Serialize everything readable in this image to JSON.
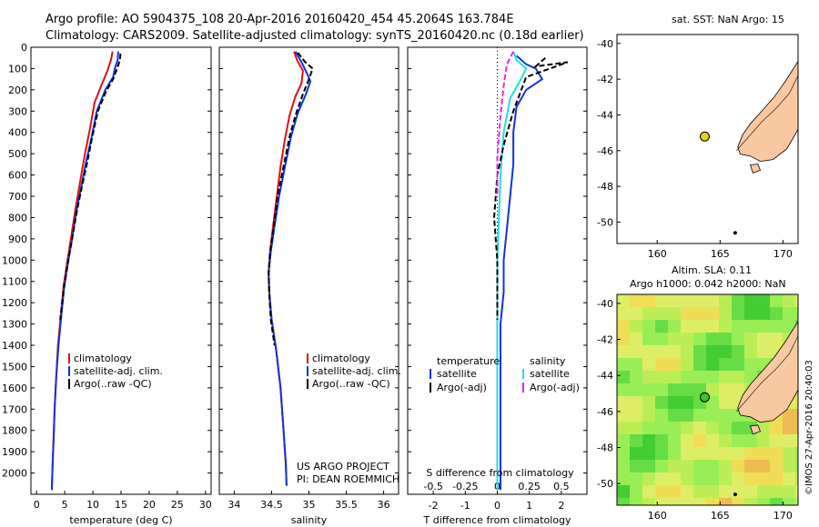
{
  "title_line1": "Argo profile: AO 5904375_108 20-Apr-2016 20160420_454 45.2064S 163.784E",
  "title_line2": "Climatology: CARS2009. Satellite-adjusted climatology: synTS_20160420.nc (0.18d earlier)",
  "project_line1": "US ARGO PROJECT",
  "project_line2": "PI: DEAN ROEMMICH",
  "map1_title": "sat. SST: NaN Argo: 15",
  "map2_title1": "Altim. SLA: 0.11",
  "map2_title2": "Argo h1000: 0.042 h2000: NaN",
  "credit": "©IMOS 27-Apr-2016 20:40:03",
  "legend_temp": [
    "climatology",
    "satellite-adj. clim.",
    "Argo(..raw -QC)"
  ],
  "legend_sal": [
    "climatology",
    "satellite-adj. clim.",
    "Argo(..raw -QC)"
  ],
  "legend_diff_headers": [
    "temperature",
    "salinity"
  ],
  "legend_diff_t": [
    "satellite",
    "Argo(-adj)"
  ],
  "legend_diff_s": [
    "satellite",
    "Argo(-adj)"
  ],
  "colors": {
    "climatology": "#dd1111",
    "satellite": "#1133dd",
    "argo": "#000000",
    "sal_sat": "#22dddd",
    "sal_argo": "#ee22ee",
    "land": "#f8c8a0",
    "float": "#e0d020"
  },
  "chart_data": [
    {
      "type": "line",
      "xlabel": "temperature (deg C)",
      "ylim": [
        2100,
        0
      ],
      "xlim": [
        -1,
        31
      ],
      "xticks": [
        0,
        5,
        10,
        15,
        20,
        25,
        30
      ],
      "yticks": [
        0,
        100,
        200,
        300,
        400,
        500,
        600,
        700,
        800,
        900,
        1000,
        1100,
        1200,
        1300,
        1400,
        1500,
        1600,
        1700,
        1800,
        1900,
        2000
      ],
      "series": [
        {
          "name": "climatology",
          "color": "#dd1111",
          "points": [
            [
              13.5,
              20
            ],
            [
              13.2,
              60
            ],
            [
              12.6,
              110
            ],
            [
              11.5,
              180
            ],
            [
              10.3,
              260
            ],
            [
              9.5,
              380
            ],
            [
              8.6,
              500
            ],
            [
              7.8,
              620
            ],
            [
              6.9,
              760
            ],
            [
              6.2,
              880
            ],
            [
              5.5,
              1000
            ],
            [
              4.8,
              1120
            ],
            [
              4.3,
              1260
            ],
            [
              3.8,
              1400
            ],
            [
              3.5,
              1550
            ],
            [
              3.2,
              1700
            ],
            [
              3.0,
              1850
            ],
            [
              2.8,
              2000
            ],
            [
              2.7,
              2080
            ]
          ]
        },
        {
          "name": "satellite-adj. clim.",
          "color": "#1133dd",
          "points": [
            [
              14.5,
              20
            ],
            [
              14.4,
              60
            ],
            [
              13.9,
              100
            ],
            [
              13.6,
              140
            ],
            [
              12.2,
              200
            ],
            [
              10.7,
              300
            ],
            [
              9.8,
              420
            ],
            [
              8.8,
              540
            ],
            [
              7.9,
              660
            ],
            [
              7.0,
              780
            ],
            [
              6.3,
              900
            ],
            [
              5.6,
              1010
            ],
            [
              4.9,
              1130
            ],
            [
              4.4,
              1260
            ],
            [
              3.9,
              1400
            ],
            [
              3.5,
              1550
            ],
            [
              3.2,
              1700
            ],
            [
              3.0,
              1850
            ],
            [
              2.8,
              2000
            ],
            [
              2.7,
              2080
            ]
          ]
        },
        {
          "name": "Argo(..raw -QC)",
          "color": "#000000",
          "points": [
            [
              14.9,
              30
            ],
            [
              14.8,
              60
            ],
            [
              14.3,
              100
            ],
            [
              13.6,
              150
            ],
            [
              12.3,
              210
            ],
            [
              10.9,
              300
            ],
            [
              9.9,
              420
            ],
            [
              9.0,
              540
            ],
            [
              8.0,
              660
            ],
            [
              7.1,
              780
            ],
            [
              6.3,
              900
            ],
            [
              5.5,
              1020
            ],
            [
              4.8,
              1140
            ],
            [
              4.2,
              1280
            ]
          ]
        }
      ]
    },
    {
      "type": "line",
      "xlabel": "salinity",
      "ylim": [
        2100,
        0
      ],
      "xlim": [
        33.8,
        36.2
      ],
      "xticks": [
        34,
        34.5,
        35,
        35.5,
        36
      ],
      "series": [
        {
          "name": "climatology",
          "color": "#dd1111",
          "points": [
            [
              34.8,
              20
            ],
            [
              34.84,
              60
            ],
            [
              34.92,
              110
            ],
            [
              34.9,
              170
            ],
            [
              34.82,
              230
            ],
            [
              34.74,
              320
            ],
            [
              34.68,
              430
            ],
            [
              34.62,
              560
            ],
            [
              34.57,
              700
            ],
            [
              34.52,
              840
            ],
            [
              34.48,
              960
            ],
            [
              34.46,
              1060
            ],
            [
              34.47,
              1160
            ],
            [
              34.5,
              1280
            ],
            [
              34.56,
              1420
            ],
            [
              34.62,
              1600
            ],
            [
              34.66,
              1800
            ],
            [
              34.69,
              1960
            ],
            [
              34.7,
              2060
            ]
          ]
        },
        {
          "name": "satellite-adj. clim.",
          "color": "#1133dd",
          "points": [
            [
              34.82,
              20
            ],
            [
              34.9,
              70
            ],
            [
              34.97,
              120
            ],
            [
              35.02,
              160
            ],
            [
              34.96,
              220
            ],
            [
              34.85,
              310
            ],
            [
              34.76,
              420
            ],
            [
              34.68,
              560
            ],
            [
              34.6,
              700
            ],
            [
              34.54,
              840
            ],
            [
              34.49,
              960
            ],
            [
              34.46,
              1060
            ],
            [
              34.47,
              1160
            ],
            [
              34.5,
              1280
            ],
            [
              34.56,
              1420
            ],
            [
              34.62,
              1600
            ],
            [
              34.66,
              1800
            ],
            [
              34.69,
              1960
            ],
            [
              34.7,
              2060
            ]
          ]
        },
        {
          "name": "Argo(..raw -QC)",
          "color": "#000000",
          "points": [
            [
              34.85,
              25
            ],
            [
              34.95,
              70
            ],
            [
              35.05,
              100
            ],
            [
              35.0,
              150
            ],
            [
              34.92,
              220
            ],
            [
              34.82,
              320
            ],
            [
              34.74,
              420
            ],
            [
              34.66,
              560
            ],
            [
              34.58,
              700
            ],
            [
              34.53,
              840
            ],
            [
              34.48,
              960
            ],
            [
              34.46,
              1060
            ],
            [
              34.47,
              1160
            ],
            [
              34.49,
              1280
            ],
            [
              34.54,
              1400
            ]
          ]
        }
      ]
    },
    {
      "type": "line",
      "xlabel_bottom": "T difference from climatology",
      "xlabel_top": "S difference from climatology",
      "ylim": [
        2100,
        0
      ],
      "xlim": [
        -2.8,
        2.8
      ],
      "xticks_t": [
        -2,
        -1,
        0,
        1,
        2
      ],
      "xticks_s": [
        "-0.5",
        "-0.25",
        "0",
        "0.25",
        "0.5"
      ],
      "series": [
        {
          "name": "T satellite",
          "color": "#1133dd",
          "points": [
            [
              0.6,
              40
            ],
            [
              0.9,
              80
            ],
            [
              1.2,
              100
            ],
            [
              1.4,
              150
            ],
            [
              0.9,
              200
            ],
            [
              0.6,
              280
            ],
            [
              0.5,
              400
            ],
            [
              0.5,
              550
            ],
            [
              0.4,
              700
            ],
            [
              0.3,
              850
            ],
            [
              0.2,
              1000
            ],
            [
              0.2,
              1150
            ],
            [
              0.1,
              1300
            ],
            [
              0.1,
              1500
            ],
            [
              0.1,
              1700
            ],
            [
              0.1,
              1900
            ],
            [
              0.1,
              2080
            ]
          ]
        },
        {
          "name": "T Argo(-adj)",
          "color": "#000000",
          "points": [
            [
              1.5,
              50
            ],
            [
              1.2,
              90
            ],
            [
              2.2,
              70
            ],
            [
              0.9,
              140
            ],
            [
              0.5,
              300
            ],
            [
              0.2,
              460
            ],
            [
              0.0,
              600
            ],
            [
              -0.1,
              800
            ],
            [
              0.0,
              1000
            ],
            [
              0.0,
              1200
            ],
            [
              0.0,
              1280
            ]
          ]
        },
        {
          "name": "S satellite",
          "color": "#22dddd",
          "points": [
            [
              0.5,
              20
            ],
            [
              0.6,
              60
            ],
            [
              0.9,
              100
            ],
            [
              0.7,
              160
            ],
            [
              0.4,
              240
            ],
            [
              0.2,
              400
            ],
            [
              0.1,
              600
            ],
            [
              0.05,
              800
            ],
            [
              0.0,
              1000
            ],
            [
              0.0,
              1400
            ],
            [
              0.0,
              1800
            ],
            [
              0.0,
              2080
            ]
          ]
        },
        {
          "name": "S Argo(-adj)",
          "color": "#ee22ee",
          "points": [
            [
              0.5,
              20
            ],
            [
              0.3,
              80
            ],
            [
              0.2,
              180
            ],
            [
              0.1,
              320
            ],
            [
              0.0,
              520
            ],
            [
              0.0,
              700
            ]
          ]
        }
      ]
    }
  ],
  "map_data": {
    "lon_ticks": [
      160,
      165,
      170
    ],
    "lat_ticks": [
      -40,
      -42,
      -44,
      -46,
      -48,
      -50
    ],
    "lon_range": [
      156.8,
      171.2
    ],
    "lat_range": [
      -39.5,
      -51.2
    ],
    "float_position": [
      163.78,
      -45.21
    ]
  }
}
